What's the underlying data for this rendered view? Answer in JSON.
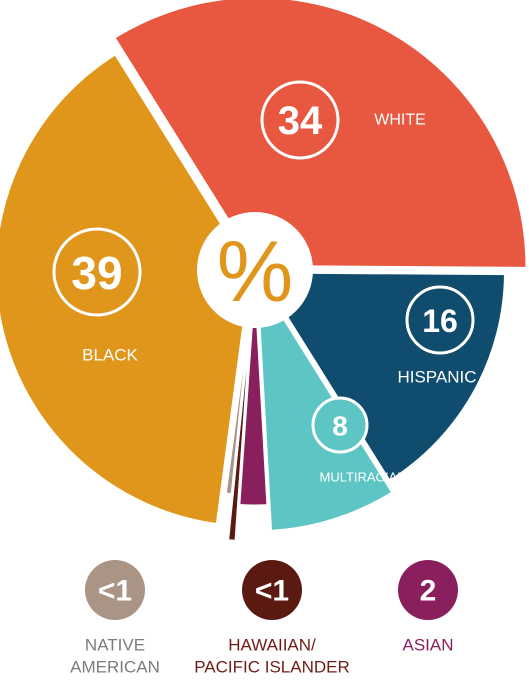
{
  "chart_data": {
    "type": "pie",
    "center_label": "%",
    "categories": [
      [
        "WHITE"
      ],
      [
        "HISPANIC"
      ],
      [
        "MULTIRACIAL"
      ],
      [
        "ASIAN"
      ],
      [
        "HAWAIIAN/",
        "PACIFIC ISLANDER"
      ],
      [
        "NATIVE",
        "AMERICAN"
      ],
      [
        "BLACK"
      ]
    ],
    "values": [
      34,
      16,
      8,
      2,
      0.5,
      0.5,
      39
    ],
    "value_labels": [
      "34",
      "16",
      "8",
      "2",
      "<1",
      "<1",
      "39"
    ],
    "colors": [
      "#e8573f",
      "#0f4c6d",
      "#5ec5c5",
      "#8a1f5e",
      "#5a1a12",
      "#a99486",
      "#e0961b"
    ]
  }
}
